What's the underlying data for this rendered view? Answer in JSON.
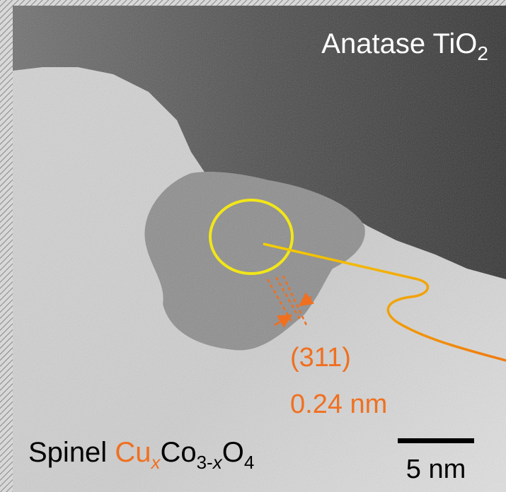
{
  "labels": {
    "phase_top": {
      "text": "Anatase TiO",
      "sub": "2"
    },
    "plane": "(311)",
    "spacing": "0.24 nm",
    "phase_bottom": {
      "prefix": "Spinel ",
      "cu": "Cu",
      "cu_sub": "x",
      "co": "Co",
      "co_sub_num": "3-",
      "co_sub_var": "x",
      "o": "O",
      "o_sub": "4"
    },
    "scale_bar": "5 nm"
  }
}
